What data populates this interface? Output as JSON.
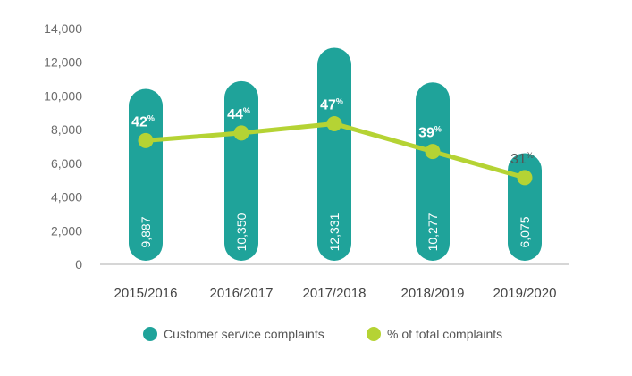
{
  "chart_data": {
    "type": "bar",
    "categories": [
      "2015/2016",
      "2016/2017",
      "2017/2018",
      "2018/2019",
      "2019/2020"
    ],
    "series": [
      {
        "name": "Customer service complaints",
        "values": [
          9887,
          10350,
          12331,
          10277,
          6075
        ],
        "value_labels": [
          "9,887",
          "10,350",
          "12,331",
          "10,277",
          "6,075"
        ],
        "color": "#1fa39a"
      },
      {
        "name": "% of total complaints",
        "type": "line",
        "values": [
          42,
          44,
          47,
          39,
          31
        ],
        "value_labels": [
          "42",
          "44",
          "47",
          "39",
          "31"
        ],
        "percent_symbol": "%",
        "plotted_at": [
          7350,
          7800,
          8350,
          6700,
          5150
        ],
        "color": "#b5d334"
      }
    ],
    "yticks": [
      "14,000",
      "12,000",
      "10,000",
      "8,000",
      "6,000",
      "4,000",
      "2,000",
      "0"
    ],
    "ylim": [
      0,
      14000
    ],
    "legend_position": "bottom"
  }
}
